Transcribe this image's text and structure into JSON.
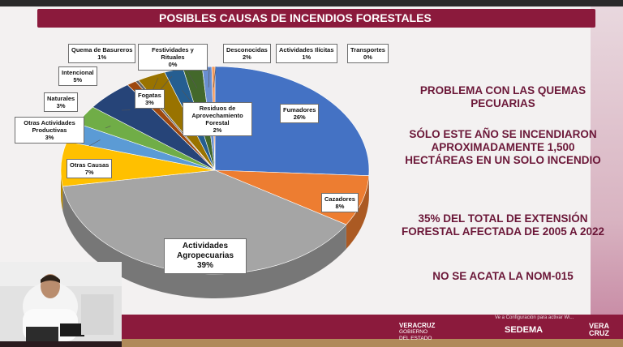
{
  "window": {
    "top_text": "",
    "bottom_notice": "Ve a Configuración para activar Wi..."
  },
  "slide": {
    "title": "POSIBLES CAUSAS DE INCENDIOS FORESTALES",
    "right_block": [
      "PROBLEMA CON LAS QUEMAS PECUARIAS",
      "SÓLO ESTE AÑO SE INCENDIARON APROXIMADAMENTE 1,500 HECTÁREAS EN UN SOLO INCENDIO",
      "35% DEL TOTAL DE EXTENSIÓN FORESTAL AFECTADA  DE 2005 A 2022",
      "NO SE ACATA LA NOM-015"
    ]
  },
  "logos": {
    "veracruz_line1": "VERACRUZ",
    "veracruz_line2": "GOBIERNO",
    "veracruz_line3": "DEL ESTADO",
    "sedema": "SEDEMA",
    "veracruz_brand": "VERA CRUZ"
  },
  "colors": {
    "maroon": "#8b1a3c",
    "gold": "#b08a5a"
  },
  "chart_data": {
    "type": "pie",
    "title": "",
    "slices": [
      {
        "label": "Fumadores",
        "value": 26,
        "value_label": "26%",
        "color": "#4472c4"
      },
      {
        "label": "Cazadores",
        "value": 8,
        "value_label": "8%",
        "color": "#ed7d31"
      },
      {
        "label": "Actividades Agropecuarias",
        "value": 39,
        "value_label": "39%",
        "color": "#a5a5a5"
      },
      {
        "label": "Otras Causas",
        "value": 7,
        "value_label": "7%",
        "color": "#ffc000"
      },
      {
        "label": "Otras Actividades Productivas",
        "value": 3,
        "value_label": "3%",
        "color": "#5b9bd5"
      },
      {
        "label": "Naturales",
        "value": 3,
        "value_label": "3%",
        "color": "#70ad47"
      },
      {
        "label": "Intencional",
        "value": 5,
        "value_label": "5%",
        "color": "#264478"
      },
      {
        "label": "Quema de Basureros",
        "value": 1,
        "value_label": "1%",
        "color": "#9e480e"
      },
      {
        "label": "Festividades y Rituales",
        "value": 0,
        "value_label": "0%",
        "color": "#636363"
      },
      {
        "label": "Fogatas",
        "value": 3,
        "value_label": "3%",
        "color": "#997300"
      },
      {
        "label": "Residuos de Aprovechamiento Forestal",
        "value": 2,
        "value_label": "2%",
        "color": "#255e91"
      },
      {
        "label": "Desconocidas",
        "value": 2,
        "value_label": "2%",
        "color": "#43682b"
      },
      {
        "label": "Actividades Ilícitas",
        "value": 1,
        "value_label": "1%",
        "color": "#698ed0"
      },
      {
        "label": "Transportes",
        "value": 0,
        "value_label": "0%",
        "color": "#f1975a"
      }
    ]
  }
}
